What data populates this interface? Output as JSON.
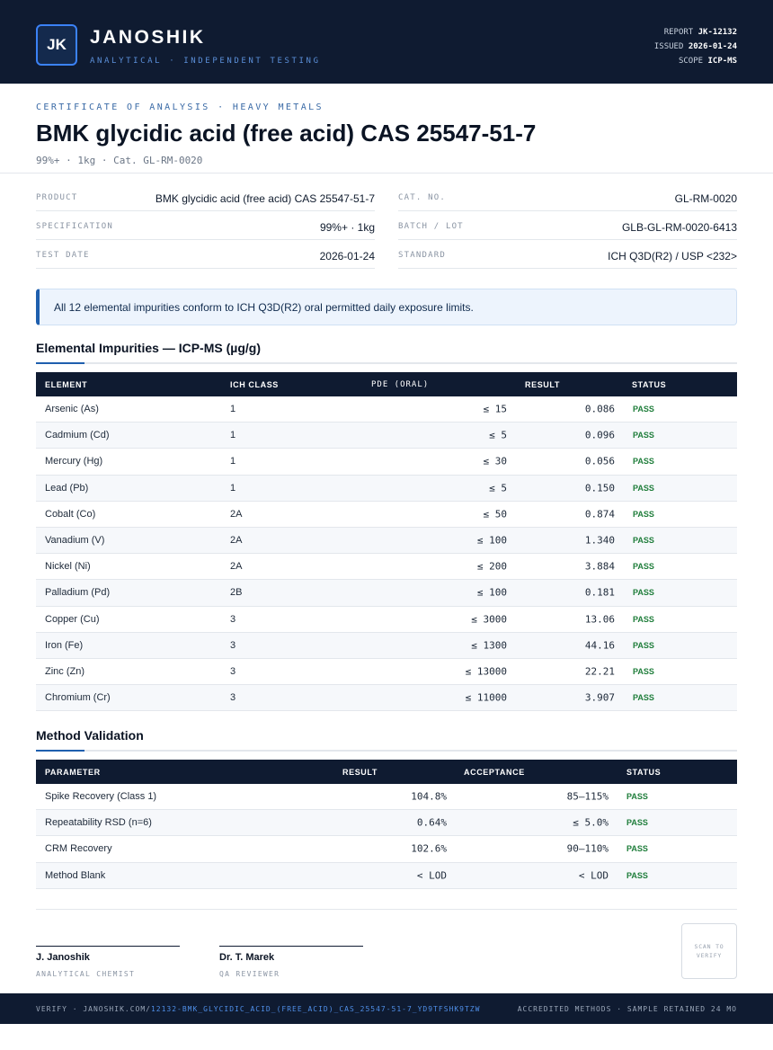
{
  "header": {
    "logo_text": "JK",
    "brand": "JANOSHIK",
    "tagline": "ANALYTICAL · INDEPENDENT TESTING",
    "report_label": "REPORT",
    "report_value": "JK-12132",
    "issued_label": "ISSUED",
    "issued_value": "2026-01-24",
    "scope_label": "SCOPE",
    "scope_value": "ICP-MS"
  },
  "title_block": {
    "eyebrow": "CERTIFICATE OF ANALYSIS · HEAVY METALS",
    "title": "BMK glycidic acid (free acid) CAS 25547-51-7",
    "subtitle": "99%+ · 1kg  ·  Cat. GL-RM-0020"
  },
  "info": {
    "product": {
      "label": "PRODUCT",
      "value": "BMK glycidic acid (free acid) CAS 25547-51-7"
    },
    "specification": {
      "label": "SPECIFICATION",
      "value": "99%+ · 1kg"
    },
    "test_date": {
      "label": "TEST DATE",
      "value": "2026-01-24"
    },
    "cat_no": {
      "label": "CAT. NO.",
      "value": "GL-RM-0020"
    },
    "batch": {
      "label": "BATCH / LOT",
      "value": "GLB-GL-RM-0020-6413"
    },
    "standard": {
      "label": "STANDARD",
      "value": "ICH Q3D(R2) / USP <232>"
    }
  },
  "notice": "All 12 elemental impurities conform to ICH Q3D(R2) oral permitted daily exposure limits.",
  "impurities": {
    "title": "Elemental Impurities — ICP-MS (µg/g)",
    "headers": {
      "element": "ELEMENT",
      "ich_class": "ICH CLASS",
      "pde": "PDE (ORAL)",
      "result": "RESULT",
      "status": "STATUS"
    },
    "rows": [
      {
        "element": "Arsenic (As)",
        "ich_class": "1",
        "pde": "≤ 15",
        "result": "0.086",
        "status": "PASS"
      },
      {
        "element": "Cadmium (Cd)",
        "ich_class": "1",
        "pde": "≤ 5",
        "result": "0.096",
        "status": "PASS"
      },
      {
        "element": "Mercury (Hg)",
        "ich_class": "1",
        "pde": "≤ 30",
        "result": "0.056",
        "status": "PASS"
      },
      {
        "element": "Lead (Pb)",
        "ich_class": "1",
        "pde": "≤ 5",
        "result": "0.150",
        "status": "PASS"
      },
      {
        "element": "Cobalt (Co)",
        "ich_class": "2A",
        "pde": "≤ 50",
        "result": "0.874",
        "status": "PASS"
      },
      {
        "element": "Vanadium (V)",
        "ich_class": "2A",
        "pde": "≤ 100",
        "result": "1.340",
        "status": "PASS"
      },
      {
        "element": "Nickel (Ni)",
        "ich_class": "2A",
        "pde": "≤ 200",
        "result": "3.884",
        "status": "PASS"
      },
      {
        "element": "Palladium (Pd)",
        "ich_class": "2B",
        "pde": "≤ 100",
        "result": "0.181",
        "status": "PASS"
      },
      {
        "element": "Copper (Cu)",
        "ich_class": "3",
        "pde": "≤ 3000",
        "result": "13.06",
        "status": "PASS"
      },
      {
        "element": "Iron (Fe)",
        "ich_class": "3",
        "pde": "≤ 1300",
        "result": "44.16",
        "status": "PASS"
      },
      {
        "element": "Zinc (Zn)",
        "ich_class": "3",
        "pde": "≤ 13000",
        "result": "22.21",
        "status": "PASS"
      },
      {
        "element": "Chromium (Cr)",
        "ich_class": "3",
        "pde": "≤ 11000",
        "result": "3.907",
        "status": "PASS"
      }
    ]
  },
  "validation": {
    "title": "Method Validation",
    "headers": {
      "parameter": "PARAMETER",
      "result": "RESULT",
      "acceptance": "ACCEPTANCE",
      "status": "STATUS"
    },
    "rows": [
      {
        "parameter": "Spike Recovery (Class 1)",
        "result": "104.8%",
        "acceptance": "85–115%",
        "status": "PASS"
      },
      {
        "parameter": "Repeatability RSD (n=6)",
        "result": "0.64%",
        "acceptance": "≤ 5.0%",
        "status": "PASS"
      },
      {
        "parameter": "CRM Recovery",
        "result": "102.6%",
        "acceptance": "90–110%",
        "status": "PASS"
      },
      {
        "parameter": "Method Blank",
        "result": "< LOD",
        "acceptance": "< LOD",
        "status": "PASS"
      }
    ]
  },
  "signatures": [
    {
      "name": "J. Janoshik",
      "role": "ANALYTICAL CHEMIST"
    },
    {
      "name": "Dr. T. Marek",
      "role": "QA REVIEWER"
    }
  ],
  "qr_text": "SCAN TO VERIFY",
  "footer": {
    "verify_prefix": "VERIFY · JANOSHIK.COM/",
    "verify_path": "12132-BMK_GLYCIDIC_ACID_(FREE_ACID)_CAS_25547-51-7_YD9TFSHK9TZW",
    "right": "ACCREDITED METHODS · SAMPLE RETAINED 24 MO"
  },
  "colors": {
    "navy": "#0f1b31",
    "accent": "#1f5fae",
    "pass": "#1e7d3a"
  }
}
